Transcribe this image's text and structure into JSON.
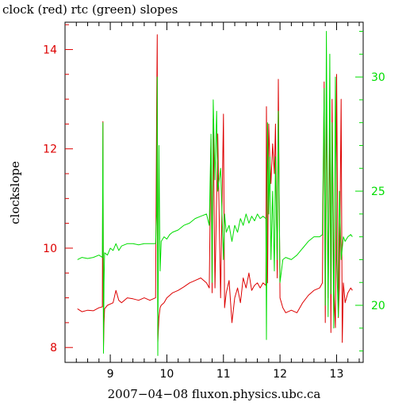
{
  "chart_data": {
    "type": "line",
    "title": "clock (red) rtc (green) slopes",
    "xlabel": "2007−04−08 fluxon.physics.ubc.ca",
    "ylabel": "clockslope",
    "xlim": [
      8.2,
      13.47
    ],
    "x_ticks": [
      9,
      10,
      11,
      12,
      13
    ],
    "y_left": {
      "label": "clockslope",
      "lim": [
        7.7,
        14.55
      ],
      "ticks": [
        8,
        10,
        12,
        14
      ],
      "color": "#dd0000"
    },
    "y_right": {
      "lim": [
        17.5,
        32.4
      ],
      "ticks": [
        20,
        25,
        30
      ],
      "color": "#00dd00"
    },
    "series": [
      {
        "color": "#dd0000",
        "axis": "left",
        "x": [
          8.42,
          8.5,
          8.6,
          8.7,
          8.8,
          8.86,
          8.87,
          8.88,
          8.89,
          8.9,
          8.95,
          9.05,
          9.1,
          9.15,
          9.2,
          9.3,
          9.4,
          9.5,
          9.6,
          9.7,
          9.8,
          9.82,
          9.83,
          9.84,
          9.86,
          9.88,
          9.9,
          9.95,
          10.0,
          10.05,
          10.1,
          10.2,
          10.3,
          10.4,
          10.5,
          10.6,
          10.7,
          10.75,
          10.78,
          10.8,
          10.82,
          10.85,
          10.9,
          10.95,
          11.0,
          11.02,
          11.05,
          11.1,
          11.15,
          11.2,
          11.25,
          11.3,
          11.35,
          11.4,
          11.45,
          11.5,
          11.55,
          11.6,
          11.65,
          11.7,
          11.75,
          11.76,
          11.78,
          11.8,
          11.82,
          11.84,
          11.87,
          11.9,
          11.92,
          11.95,
          11.97,
          12.0,
          12.05,
          12.1,
          12.2,
          12.3,
          12.4,
          12.5,
          12.6,
          12.7,
          12.75,
          12.78,
          12.8,
          12.82,
          12.85,
          12.88,
          12.9,
          12.92,
          12.95,
          12.98,
          13.0,
          13.03,
          13.05,
          13.08,
          13.1,
          13.12,
          13.15,
          13.2,
          13.25,
          13.28
        ],
        "y": [
          8.78,
          8.72,
          8.75,
          8.74,
          8.8,
          8.82,
          12.55,
          8.0,
          8.5,
          8.78,
          8.85,
          8.9,
          9.15,
          8.95,
          8.9,
          9.0,
          8.98,
          8.95,
          9.0,
          8.95,
          9.0,
          12.9,
          14.3,
          8.1,
          8.6,
          8.8,
          8.85,
          8.9,
          9.0,
          9.05,
          9.1,
          9.15,
          9.22,
          9.3,
          9.35,
          9.4,
          9.3,
          9.2,
          12.2,
          9.1,
          12.6,
          9.2,
          12.3,
          9.0,
          12.7,
          8.8,
          9.1,
          9.35,
          8.5,
          9.0,
          9.2,
          8.9,
          9.4,
          9.2,
          9.5,
          9.15,
          9.25,
          9.3,
          9.2,
          9.3,
          9.25,
          12.85,
          9.3,
          12.5,
          11.8,
          11.3,
          12.1,
          11.5,
          12.5,
          9.4,
          13.4,
          9.0,
          8.8,
          8.7,
          8.75,
          8.7,
          8.9,
          9.05,
          9.15,
          9.2,
          9.3,
          13.35,
          8.5,
          13.2,
          9.0,
          12.6,
          8.3,
          13.0,
          9.2,
          8.4,
          13.5,
          8.6,
          9.2,
          13.0,
          8.1,
          9.3,
          8.9,
          9.1,
          9.2,
          9.15
        ]
      },
      {
        "color": "#00dd00",
        "axis": "right",
        "x": [
          8.42,
          8.5,
          8.6,
          8.7,
          8.8,
          8.86,
          8.87,
          8.88,
          8.89,
          8.9,
          8.95,
          9.0,
          9.05,
          9.1,
          9.15,
          9.2,
          9.3,
          9.4,
          9.5,
          9.6,
          9.7,
          9.8,
          9.82,
          9.83,
          9.84,
          9.86,
          9.88,
          9.9,
          9.95,
          10.0,
          10.05,
          10.1,
          10.2,
          10.3,
          10.4,
          10.5,
          10.6,
          10.7,
          10.75,
          10.78,
          10.8,
          10.82,
          10.85,
          10.88,
          10.9,
          10.95,
          11.0,
          11.02,
          11.05,
          11.1,
          11.15,
          11.2,
          11.25,
          11.3,
          11.35,
          11.4,
          11.45,
          11.5,
          11.55,
          11.6,
          11.65,
          11.7,
          11.75,
          11.76,
          11.78,
          11.8,
          11.82,
          11.84,
          11.87,
          11.9,
          11.92,
          11.95,
          11.97,
          12.0,
          12.05,
          12.1,
          12.2,
          12.3,
          12.4,
          12.5,
          12.6,
          12.7,
          12.75,
          12.78,
          12.8,
          12.82,
          12.85,
          12.88,
          12.9,
          12.92,
          12.95,
          12.98,
          13.0,
          13.03,
          13.05,
          13.08,
          13.1,
          13.12,
          13.15,
          13.2,
          13.25,
          13.28
        ],
        "y": [
          22.0,
          22.1,
          22.05,
          22.1,
          22.2,
          22.1,
          28.0,
          17.9,
          21.0,
          22.3,
          22.2,
          22.5,
          22.4,
          22.7,
          22.4,
          22.6,
          22.7,
          22.7,
          22.65,
          22.7,
          22.7,
          22.7,
          24.0,
          30.0,
          17.8,
          27.0,
          21.5,
          22.8,
          23.0,
          22.9,
          23.1,
          23.2,
          23.3,
          23.5,
          23.6,
          23.8,
          23.9,
          24.0,
          23.5,
          27.5,
          21.0,
          29.0,
          25.5,
          28.5,
          25.0,
          26.0,
          22.0,
          24.0,
          23.2,
          23.5,
          22.8,
          23.5,
          23.2,
          23.8,
          23.5,
          24.0,
          23.6,
          23.9,
          23.7,
          24.0,
          23.8,
          23.9,
          23.8,
          18.5,
          28.0,
          24.0,
          26.5,
          22.0,
          25.0,
          21.5,
          26.5,
          22.0,
          28.5,
          21.0,
          22.0,
          22.1,
          22.0,
          22.2,
          22.5,
          22.8,
          23.0,
          23.0,
          23.1,
          29.5,
          20.0,
          32.0,
          19.5,
          31.0,
          20.5,
          28.0,
          19.0,
          30.0,
          22.0,
          19.5,
          25.0,
          22.0,
          22.5,
          23.0,
          22.8,
          23.0,
          23.1,
          23.0
        ]
      }
    ]
  }
}
